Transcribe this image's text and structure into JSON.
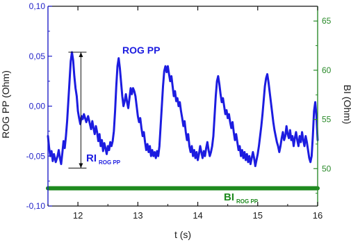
{
  "chart_data": {
    "type": "line",
    "xlabel": "t (s)",
    "ylabel_left": "ROG PP (Ohm)",
    "ylabel_right": "BI (Ohm)",
    "xlim": [
      11.5,
      16
    ],
    "ylim_left": [
      -0.1,
      0.1
    ],
    "ylim_right": [
      46.2,
      66.5
    ],
    "x_ticks": [
      "12",
      "13",
      "14",
      "15",
      "16"
    ],
    "y_ticks_left": [
      "0,10",
      "0,05",
      "0,00",
      "-0,05",
      "-0,10"
    ],
    "y_ticks_right": [
      "65",
      "60",
      "55",
      "50"
    ],
    "colors": {
      "rog": "#1c1ce0",
      "bi": "#1e8a1e",
      "axis_left": "#2020c8",
      "axis_right": "#2a8a2a",
      "text": "#1a1a1a"
    },
    "annotations": {
      "series_label": "ROG PP",
      "ri_label": "RI",
      "ri_sub": "ROG PP",
      "bi_label": "BI",
      "bi_sub": "ROG PP",
      "ri_arrow": {
        "x": 12.05,
        "y_top": 0.054,
        "y_bottom": -0.062
      }
    },
    "series": [
      {
        "name": "ROG PP",
        "axis": "left",
        "points": [
          [
            11.5,
            -0.03
          ],
          [
            11.52,
            -0.042
          ],
          [
            11.54,
            -0.05
          ],
          [
            11.56,
            -0.045
          ],
          [
            11.58,
            -0.055
          ],
          [
            11.6,
            -0.048
          ],
          [
            11.63,
            -0.056
          ],
          [
            11.66,
            -0.05
          ],
          [
            11.68,
            -0.044
          ],
          [
            11.7,
            -0.052
          ],
          [
            11.72,
            -0.058
          ],
          [
            11.74,
            -0.047
          ],
          [
            11.76,
            -0.035
          ],
          [
            11.78,
            -0.042
          ],
          [
            11.8,
            -0.03
          ],
          [
            11.82,
            -0.015
          ],
          [
            11.84,
            0.005
          ],
          [
            11.86,
            0.025
          ],
          [
            11.88,
            0.045
          ],
          [
            11.9,
            0.054
          ],
          [
            11.92,
            0.046
          ],
          [
            11.94,
            0.03
          ],
          [
            11.96,
            0.018
          ],
          [
            11.98,
            0.01
          ],
          [
            12.0,
            -0.005
          ],
          [
            12.02,
            -0.012
          ],
          [
            12.04,
            -0.018
          ],
          [
            12.06,
            -0.01
          ],
          [
            12.08,
            -0.013
          ],
          [
            12.1,
            -0.008
          ],
          [
            12.12,
            -0.012
          ],
          [
            12.14,
            -0.016
          ],
          [
            12.17,
            -0.01
          ],
          [
            12.2,
            -0.018
          ],
          [
            12.22,
            -0.023
          ],
          [
            12.24,
            -0.015
          ],
          [
            12.26,
            -0.022
          ],
          [
            12.28,
            -0.028
          ],
          [
            12.3,
            -0.02
          ],
          [
            12.32,
            -0.026
          ],
          [
            12.34,
            -0.035
          ],
          [
            12.36,
            -0.028
          ],
          [
            12.38,
            -0.04
          ],
          [
            12.4,
            -0.034
          ],
          [
            12.42,
            -0.045
          ],
          [
            12.44,
            -0.037
          ],
          [
            12.46,
            -0.042
          ],
          [
            12.48,
            -0.048
          ],
          [
            12.5,
            -0.04
          ],
          [
            12.52,
            -0.044
          ],
          [
            12.54,
            -0.036
          ],
          [
            12.56,
            -0.04
          ],
          [
            12.58,
            -0.035
          ],
          [
            12.6,
            -0.025
          ],
          [
            12.62,
            -0.005
          ],
          [
            12.64,
            0.02
          ],
          [
            12.66,
            0.04
          ],
          [
            12.68,
            0.048
          ],
          [
            12.7,
            0.038
          ],
          [
            12.72,
            0.024
          ],
          [
            12.74,
            0.01
          ],
          [
            12.76,
            0.0
          ],
          [
            12.78,
            0.005
          ],
          [
            12.8,
            0.012
          ],
          [
            12.82,
            0.004
          ],
          [
            12.84,
            -0.002
          ],
          [
            12.86,
            0.008
          ],
          [
            12.88,
            0.018
          ],
          [
            12.9,
            0.012
          ],
          [
            12.92,
            0.018
          ],
          [
            12.94,
            0.015
          ],
          [
            12.96,
            0.01
          ],
          [
            12.98,
            0.0
          ],
          [
            13.0,
            -0.01
          ],
          [
            13.02,
            -0.016
          ],
          [
            13.04,
            -0.012
          ],
          [
            13.06,
            -0.022
          ],
          [
            13.08,
            -0.03
          ],
          [
            13.1,
            -0.026
          ],
          [
            13.12,
            -0.036
          ],
          [
            13.14,
            -0.044
          ],
          [
            13.16,
            -0.038
          ],
          [
            13.18,
            -0.046
          ],
          [
            13.2,
            -0.04
          ],
          [
            13.22,
            -0.05
          ],
          [
            13.24,
            -0.044
          ],
          [
            13.26,
            -0.05
          ],
          [
            13.28,
            -0.046
          ],
          [
            13.3,
            -0.052
          ],
          [
            13.32,
            -0.045
          ],
          [
            13.34,
            -0.05
          ],
          [
            13.36,
            -0.04
          ],
          [
            13.38,
            -0.02
          ],
          [
            13.4,
            0.0
          ],
          [
            13.42,
            0.02
          ],
          [
            13.44,
            0.035
          ],
          [
            13.46,
            0.04
          ],
          [
            13.48,
            0.034
          ],
          [
            13.5,
            0.04
          ],
          [
            13.52,
            0.032
          ],
          [
            13.54,
            0.025
          ],
          [
            13.56,
            0.03
          ],
          [
            13.58,
            0.02
          ],
          [
            13.6,
            0.01
          ],
          [
            13.62,
            0.015
          ],
          [
            13.64,
            0.005
          ],
          [
            13.66,
            0.008
          ],
          [
            13.68,
            0.0
          ],
          [
            13.7,
            0.004
          ],
          [
            13.72,
            -0.005
          ],
          [
            13.74,
            -0.012
          ],
          [
            13.76,
            -0.02
          ],
          [
            13.78,
            -0.015
          ],
          [
            13.8,
            -0.026
          ],
          [
            13.82,
            -0.034
          ],
          [
            13.84,
            -0.028
          ],
          [
            13.86,
            -0.04
          ],
          [
            13.88,
            -0.046
          ],
          [
            13.9,
            -0.04
          ],
          [
            13.92,
            -0.05
          ],
          [
            13.94,
            -0.044
          ],
          [
            13.96,
            -0.052
          ],
          [
            13.98,
            -0.046
          ],
          [
            14.0,
            -0.054
          ],
          [
            14.02,
            -0.048
          ],
          [
            14.04,
            -0.04
          ],
          [
            14.06,
            -0.046
          ],
          [
            14.08,
            -0.052
          ],
          [
            14.1,
            -0.045
          ],
          [
            14.12,
            -0.05
          ],
          [
            14.14,
            -0.042
          ],
          [
            14.16,
            -0.036
          ],
          [
            14.18,
            -0.044
          ],
          [
            14.2,
            -0.05
          ],
          [
            14.22,
            -0.046
          ],
          [
            14.24,
            -0.04
          ],
          [
            14.26,
            -0.03
          ],
          [
            14.28,
            -0.01
          ],
          [
            14.3,
            0.01
          ],
          [
            14.32,
            0.025
          ],
          [
            14.34,
            0.03
          ],
          [
            14.36,
            0.022
          ],
          [
            14.38,
            0.012
          ],
          [
            14.4,
            0.004
          ],
          [
            14.42,
            0.008
          ],
          [
            14.44,
            0.0
          ],
          [
            14.46,
            -0.008
          ],
          [
            14.48,
            -0.004
          ],
          [
            14.5,
            -0.012
          ],
          [
            14.52,
            -0.008
          ],
          [
            14.54,
            -0.016
          ],
          [
            14.56,
            -0.022
          ],
          [
            14.58,
            -0.016
          ],
          [
            14.6,
            -0.026
          ],
          [
            14.62,
            -0.034
          ],
          [
            14.64,
            -0.028
          ],
          [
            14.66,
            -0.036
          ],
          [
            14.68,
            -0.044
          ],
          [
            14.7,
            -0.04
          ],
          [
            14.72,
            -0.05
          ],
          [
            14.74,
            -0.044
          ],
          [
            14.76,
            -0.052
          ],
          [
            14.78,
            -0.046
          ],
          [
            14.8,
            -0.054
          ],
          [
            14.82,
            -0.048
          ],
          [
            14.84,
            -0.056
          ],
          [
            14.86,
            -0.05
          ],
          [
            14.88,
            -0.058
          ],
          [
            14.9,
            -0.052
          ],
          [
            14.92,
            -0.046
          ],
          [
            14.94,
            -0.052
          ],
          [
            14.96,
            -0.06
          ],
          [
            14.98,
            -0.054
          ],
          [
            15.0,
            -0.048
          ],
          [
            15.02,
            -0.04
          ],
          [
            15.04,
            -0.03
          ],
          [
            15.06,
            -0.02
          ],
          [
            15.08,
            -0.008
          ],
          [
            15.1,
            0.006
          ],
          [
            15.12,
            0.02
          ],
          [
            15.14,
            0.028
          ],
          [
            15.16,
            0.032
          ],
          [
            15.18,
            0.024
          ],
          [
            15.2,
            0.014
          ],
          [
            15.22,
            0.004
          ],
          [
            15.24,
            -0.006
          ],
          [
            15.26,
            -0.016
          ],
          [
            15.28,
            -0.024
          ],
          [
            15.3,
            -0.03
          ],
          [
            15.32,
            -0.036
          ],
          [
            15.34,
            -0.04
          ],
          [
            15.36,
            -0.046
          ],
          [
            15.38,
            -0.04
          ],
          [
            15.4,
            -0.032
          ],
          [
            15.42,
            -0.026
          ],
          [
            15.44,
            -0.034
          ],
          [
            15.46,
            -0.03
          ],
          [
            15.48,
            -0.02
          ],
          [
            15.5,
            -0.028
          ],
          [
            15.52,
            -0.032
          ],
          [
            15.54,
            -0.024
          ],
          [
            15.56,
            -0.034
          ],
          [
            15.58,
            -0.03
          ],
          [
            15.6,
            -0.04
          ],
          [
            15.62,
            -0.032
          ],
          [
            15.64,
            -0.026
          ],
          [
            15.66,
            -0.034
          ],
          [
            15.68,
            -0.04
          ],
          [
            15.7,
            -0.03
          ],
          [
            15.72,
            -0.036
          ],
          [
            15.74,
            -0.026
          ],
          [
            15.76,
            -0.034
          ],
          [
            15.78,
            -0.04
          ],
          [
            15.8,
            -0.03
          ],
          [
            15.82,
            -0.036
          ],
          [
            15.84,
            -0.044
          ],
          [
            15.86,
            -0.052
          ],
          [
            15.88,
            -0.056
          ],
          [
            15.9,
            -0.05
          ],
          [
            15.92,
            -0.03
          ],
          [
            15.94,
            -0.005
          ],
          [
            15.96,
            0.004
          ],
          [
            15.98,
            -0.01
          ],
          [
            16.0,
            -0.034
          ]
        ]
      },
      {
        "name": "BI",
        "axis": "right",
        "points": [
          [
            11.5,
            48.0
          ],
          [
            12.5,
            48.0
          ],
          [
            13.5,
            48.0
          ],
          [
            14.5,
            48.0
          ],
          [
            15.5,
            48.0
          ],
          [
            16.0,
            48.0
          ]
        ]
      }
    ]
  }
}
